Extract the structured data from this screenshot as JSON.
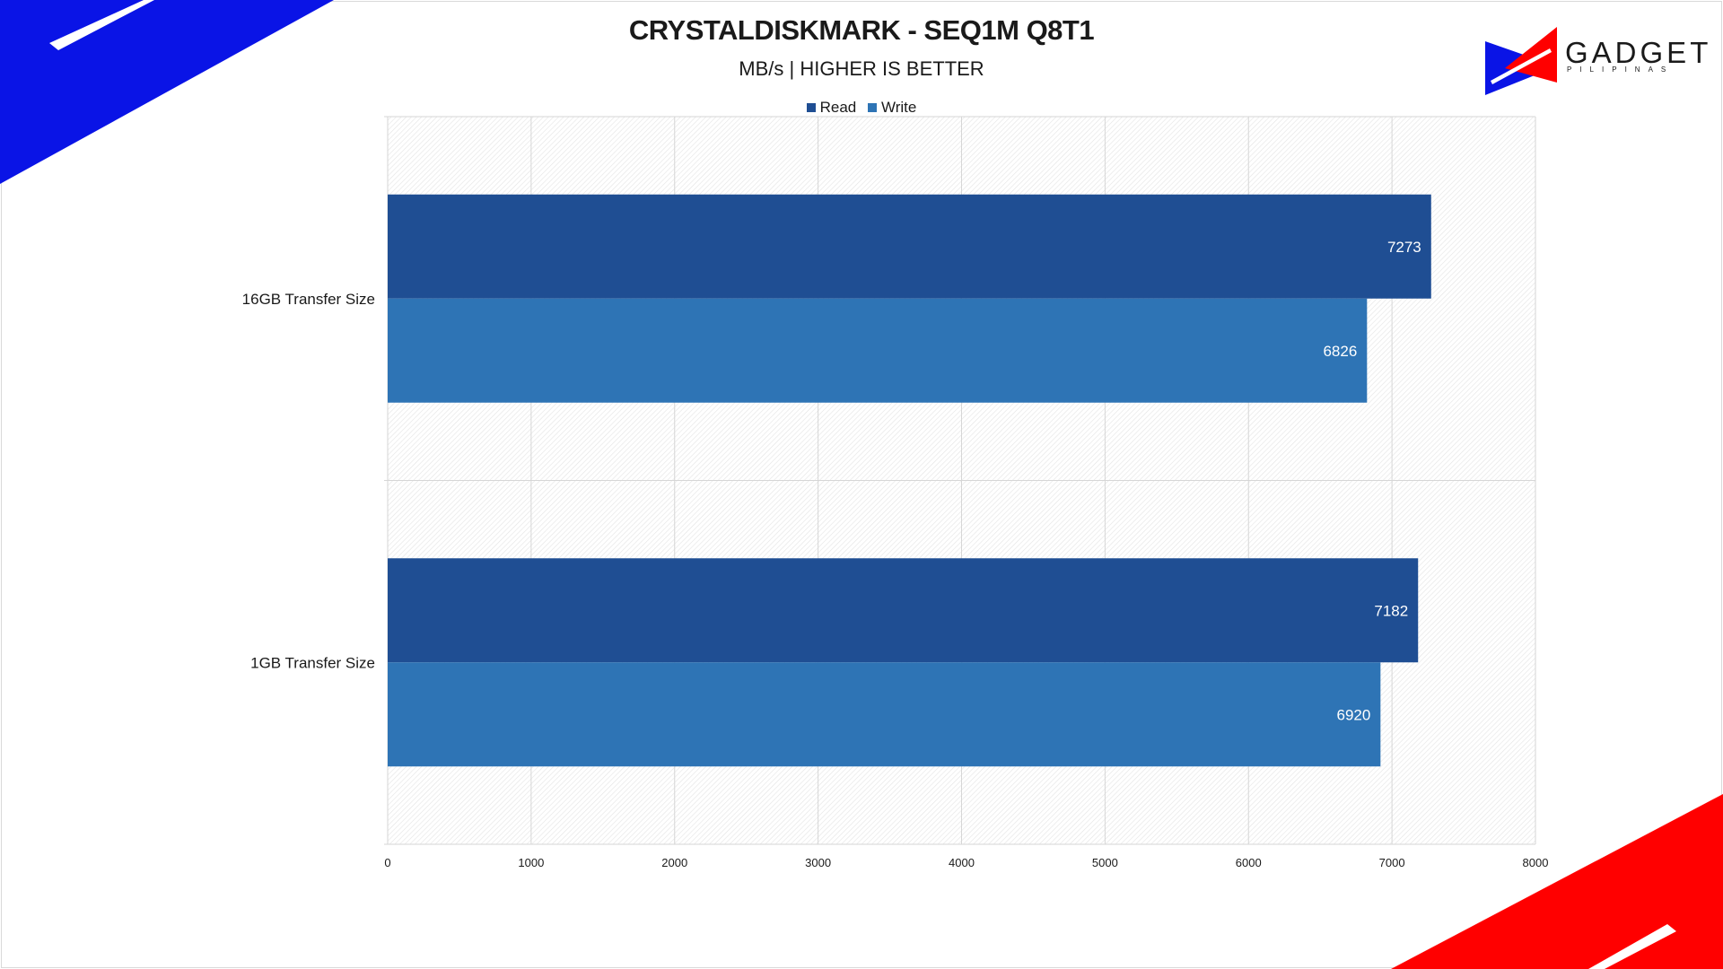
{
  "chart_data": {
    "type": "bar",
    "orientation": "horizontal",
    "title": "CRYSTALDISKMARK - SEQ1M Q8T1",
    "subtitle": "MB/s | HIGHER IS BETTER",
    "categories": [
      "16GB Transfer Size",
      "1GB Transfer Size"
    ],
    "series": [
      {
        "name": "Read",
        "color": "#1f4e93",
        "values": [
          7273,
          7182
        ]
      },
      {
        "name": "Write",
        "color": "#2e74b5",
        "values": [
          6826,
          6920
        ]
      }
    ],
    "xlim": [
      0,
      8000
    ],
    "xticks": [
      "0",
      "1000",
      "2000",
      "3000",
      "4000",
      "5000",
      "6000",
      "7000",
      "8000"
    ],
    "legend": "top",
    "grid": true
  },
  "brand": {
    "name": "GADGET",
    "sub": "PILIPINAS",
    "colors": {
      "blue": "#0a14e6",
      "red": "#ff0000"
    }
  }
}
